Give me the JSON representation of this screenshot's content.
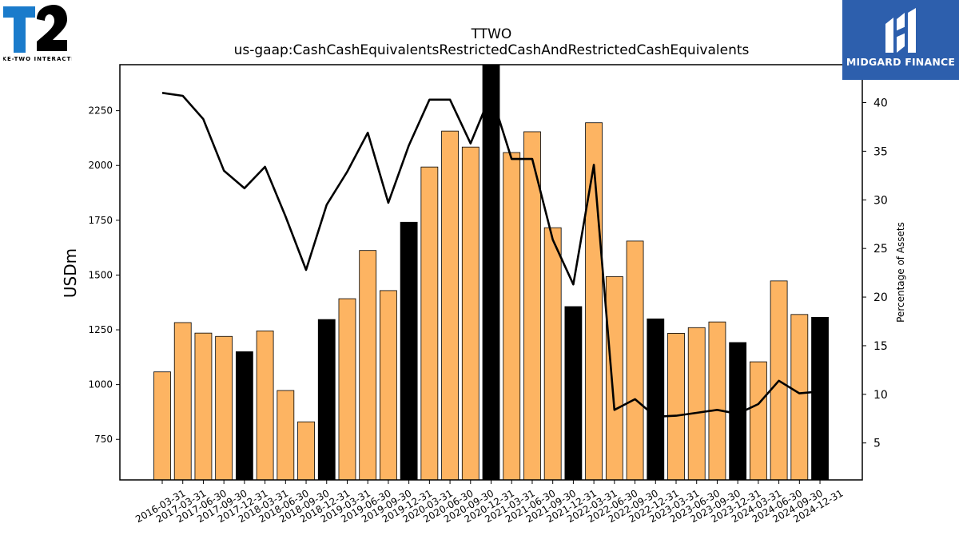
{
  "brand": {
    "left_logo_text": "TAKE-TWO INTERACTIVE",
    "right_logo_text": "MIDGARD FINANCE"
  },
  "colors": {
    "bar_normal": "#FDB462",
    "bar_quarter_end": "#000000",
    "line": "#000000",
    "brand_blue": "#2D5FAD",
    "t2_blue": "#1A7BCB"
  },
  "chart_data": {
    "type": "bar",
    "title": "TTWO",
    "subtitle": "us-gaap:CashCashEquivalentsRestrictedCashAndRestrictedCashEquivalents",
    "ylabel": "USDm",
    "y2label": "Percentage of Assets",
    "ylim": [
      565,
      2460
    ],
    "y2lim": [
      1.2,
      43.9
    ],
    "yticks": [
      750,
      1000,
      1250,
      1500,
      1750,
      2000,
      2250
    ],
    "y2ticks": [
      5,
      10,
      15,
      20,
      25,
      30,
      35,
      40
    ],
    "categories": [
      "2016-03-31",
      "2017-03-31",
      "2017-06-30",
      "2017-09-30",
      "2017-12-31",
      "2018-03-31",
      "2018-06-30",
      "2018-09-30",
      "2018-12-31",
      "2019-03-31",
      "2019-06-30",
      "2019-09-30",
      "2019-12-31",
      "2020-03-31",
      "2020-06-30",
      "2020-09-30",
      "2020-12-31",
      "2021-03-31",
      "2021-06-30",
      "2021-09-30",
      "2021-12-31",
      "2022-03-31",
      "2022-06-30",
      "2022-09-30",
      "2022-12-31",
      "2023-03-31",
      "2023-06-30",
      "2023-09-30",
      "2023-12-31",
      "2024-03-31",
      "2024-06-30",
      "2024-09-30",
      "2024-12-31"
    ],
    "series": [
      {
        "type": "bar",
        "axis": "left",
        "values": [
          1058,
          1283,
          1235,
          1220,
          1150,
          1245,
          973,
          830,
          1297,
          1392,
          1612,
          1429,
          1741,
          1993,
          2157,
          2084,
          2496,
          2059,
          2154,
          1716,
          1356,
          2195,
          1493,
          1655,
          1300,
          1234,
          1260,
          1286,
          1192,
          1104,
          1473,
          1320,
          1307
        ],
        "black_bars": [
          "2017-12-31",
          "2018-12-31",
          "2019-12-31",
          "2020-12-31",
          "2021-12-31",
          "2022-12-31",
          "2023-12-31",
          "2024-12-31"
        ]
      },
      {
        "type": "line",
        "axis": "right",
        "values": [
          41.0,
          40.7,
          38.3,
          33.0,
          31.2,
          33.4,
          28.3,
          22.8,
          29.5,
          32.9,
          36.9,
          29.7,
          35.6,
          40.3,
          40.3,
          35.8,
          40.9,
          34.2,
          34.2,
          25.9,
          21.3,
          33.6,
          8.4,
          9.5,
          7.7,
          7.8,
          8.1,
          8.4,
          8.0,
          9.0,
          11.4,
          10.1,
          10.3
        ]
      }
    ]
  }
}
